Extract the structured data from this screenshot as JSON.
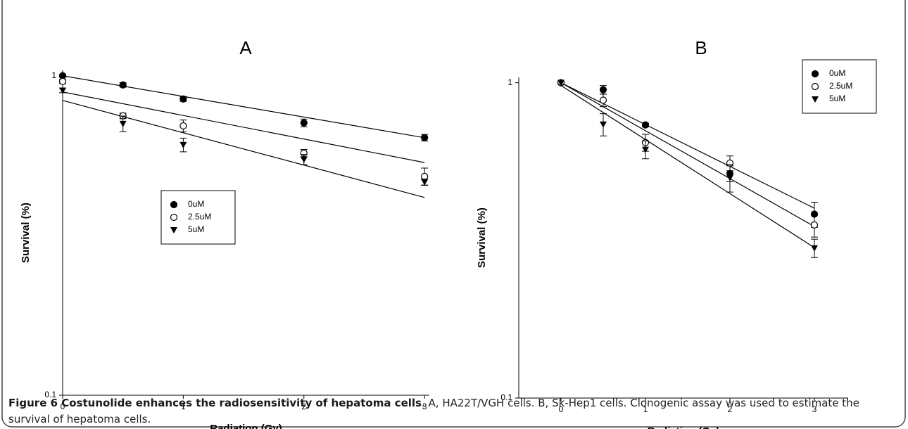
{
  "chart_data": [
    {
      "type": "scatter",
      "title": "A",
      "xlabel": "Radiation (Gy)",
      "ylabel": "Survival (%)",
      "log_y": true,
      "x": [
        0,
        0.5,
        1,
        2,
        3
      ],
      "xlim": [
        0,
        3.04
      ],
      "xticks": [
        0,
        1,
        2,
        3
      ],
      "ylim": [
        0.1,
        1.04
      ],
      "yticks": [
        0.1,
        1
      ],
      "legend_position": "center-left",
      "series": [
        {
          "name": "0uM",
          "color": "#000000",
          "marker": "circle",
          "values": [
            1.0,
            0.936,
            0.846,
            0.712,
            0.64
          ],
          "errors": [
            0.01,
            0.015,
            0.015,
            0.02,
            0.015
          ],
          "fit_x": [
            0,
            3
          ],
          "fit": [
            1.0,
            0.64
          ]
        },
        {
          "name": "2.5uM",
          "color": "#000000",
          "marker": "open-circle",
          "values": [
            0.96,
            0.749,
            0.697,
            0.573,
            0.484
          ],
          "errors": [
            0.015,
            0.015,
            0.03,
            0.015,
            0.03
          ],
          "fit_x": [
            0,
            3
          ],
          "fit": [
            0.89,
            0.535
          ]
        },
        {
          "name": "5uM",
          "color": "#000000",
          "marker": "triangle-down",
          "values": [
            0.9,
            0.708,
            0.608,
            0.547,
            0.465
          ],
          "errors": [
            0.015,
            0.04,
            0.03,
            0.02,
            0.01
          ],
          "fit_x": [
            0,
            3
          ],
          "fit": [
            0.837,
            0.416
          ]
        }
      ]
    },
    {
      "type": "scatter",
      "title": "B",
      "xlabel": "Radiation (Gy)",
      "ylabel": "Survival (%)",
      "log_y": true,
      "x": [
        0,
        0.5,
        1,
        2,
        3
      ],
      "xlim": [
        -0.5,
        3.4
      ],
      "xticks": [
        0,
        1,
        2,
        3
      ],
      "ylim": [
        0.1,
        1.04
      ],
      "yticks": [
        0.1,
        1
      ],
      "legend_position": "upper-right",
      "series": [
        {
          "name": "0uM",
          "color": "#000000",
          "marker": "circle",
          "values": [
            1.0,
            0.95,
            0.735,
            0.515,
            0.383
          ],
          "errors": [
            0.01,
            0.03,
            0.01,
            0.03,
            0.035
          ],
          "fit_x": [
            0,
            3
          ],
          "fit": [
            1.0,
            0.4
          ]
        },
        {
          "name": "2.5uM",
          "color": "#000000",
          "marker": "open-circle",
          "values": [
            1.0,
            0.88,
            0.646,
            0.556,
            0.354
          ],
          "errors": [
            0.01,
            0.04,
            0.04,
            0.03,
            0.03
          ],
          "fit_x": [
            0,
            3
          ],
          "fit": [
            1.0,
            0.35
          ]
        },
        {
          "name": "5uM",
          "color": "#000000",
          "marker": "triangle-down",
          "values": [
            1.0,
            0.738,
            0.614,
            0.5,
            0.299
          ],
          "errors": [
            0.01,
            0.06,
            0.04,
            0.05,
            0.02
          ],
          "fit_x": [
            0,
            3
          ],
          "fit": [
            0.98,
            0.3
          ]
        }
      ]
    }
  ],
  "caption": {
    "label": "Figure 6 Costunolide enhances the radiosensitivity of hepatoma cells",
    "text": ". A, HA22T/VGH cells. B, Sk-Hep1 cells. Clonogenic assay was used to estimate the survival of hepatoma cells."
  }
}
